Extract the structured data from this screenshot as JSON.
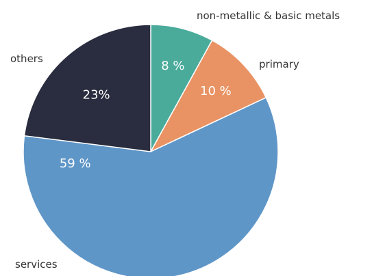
{
  "chart_data": {
    "type": "pie",
    "title": "",
    "start_angle": "12 o'clock, clockwise",
    "slices": [
      {
        "category": "non-metallic & basic metals",
        "value": 8,
        "label": "8 %",
        "color": "#4aab9b"
      },
      {
        "category": "primary",
        "value": 10,
        "label": "10 %",
        "color": "#e99364"
      },
      {
        "category": "services",
        "value": 59,
        "label": "59 %",
        "color": "#5f96c8"
      },
      {
        "category": "others",
        "value": 23,
        "label": "23%",
        "color": "#2a2c3f"
      }
    ]
  }
}
